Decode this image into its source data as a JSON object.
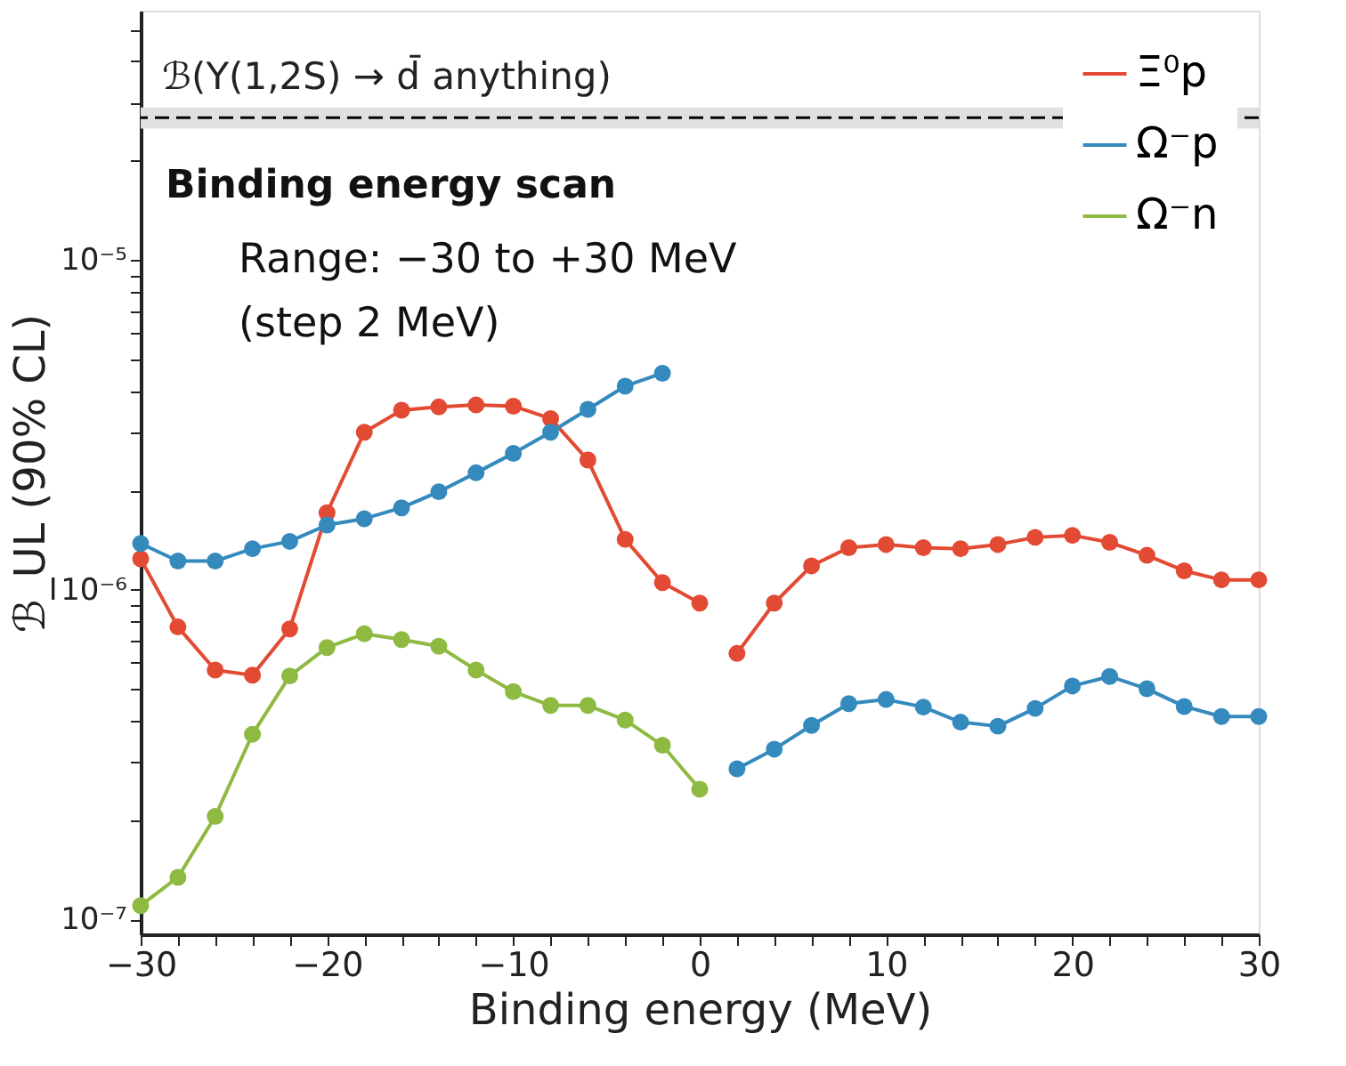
{
  "chart_data": {
    "type": "line",
    "xlabel": "Binding energy (MeV)",
    "ylabel": "ℬ_UL (90% CL)",
    "x": [
      -30,
      -28,
      -26,
      -24,
      -22,
      -20,
      -18,
      -16,
      -14,
      -12,
      -10,
      -8,
      -6,
      -4,
      -2,
      0,
      1,
      2,
      4,
      6,
      8,
      10,
      12,
      14,
      16,
      18,
      20,
      22,
      24,
      26,
      28,
      30
    ],
    "series": [
      {
        "name": "Ξ⁰p",
        "color": "#e24a33",
        "values": [
          1.24e-06,
          7.7e-07,
          5.7e-07,
          5.5e-07,
          7.6e-07,
          1.71e-06,
          3e-06,
          3.5e-06,
          3.58e-06,
          3.63e-06,
          3.6e-06,
          3.3e-06,
          2.47e-06,
          1.42e-06,
          1.05e-06,
          9.1e-07,
          null,
          6.4e-07,
          9.1e-07,
          1.18e-06,
          1.34e-06,
          1.37e-06,
          1.34e-06,
          1.33e-06,
          1.37e-06,
          1.44e-06,
          1.46e-06,
          1.39e-06,
          1.27e-06,
          1.14e-06,
          1.07e-06,
          1.07e-06
        ]
      },
      {
        "name": "Ω⁻p",
        "color": "#348abd",
        "values": [
          1.38e-06,
          1.22e-06,
          1.22e-06,
          1.33e-06,
          1.4e-06,
          1.57e-06,
          1.64e-06,
          1.77e-06,
          1.98e-06,
          2.26e-06,
          2.59e-06,
          3e-06,
          3.52e-06,
          4.14e-06,
          4.53e-06,
          null,
          null,
          2.86e-07,
          3.28e-07,
          3.87e-07,
          4.51e-07,
          4.64e-07,
          4.4e-07,
          3.96e-07,
          3.85e-07,
          4.36e-07,
          5.1e-07,
          5.45e-07,
          5e-07,
          4.42e-07,
          4.12e-07,
          4.12e-07
        ]
      },
      {
        "name": "Ω⁻n",
        "color": "#8eba42",
        "values": [
          1.1e-07,
          1.34e-07,
          2.05e-07,
          3.64e-07,
          5.47e-07,
          6.67e-07,
          7.34e-07,
          7.05e-07,
          6.73e-07,
          5.7e-07,
          4.9e-07,
          4.45e-07,
          4.45e-07,
          4.02e-07,
          3.37e-07,
          2.48e-07,
          null,
          null,
          null,
          null,
          null,
          null,
          null,
          null,
          null,
          null,
          null,
          null,
          null,
          null,
          null,
          null
        ]
      }
    ],
    "log": "y",
    "xlim": [
      -30,
      30
    ],
    "ylim": [
      9e-08,
      5.7e-05
    ],
    "xticks": [
      {
        "value": -30,
        "label": "−30"
      },
      {
        "value": -28,
        "label": null
      },
      {
        "value": -26,
        "label": null
      },
      {
        "value": -24,
        "label": null
      },
      {
        "value": -22,
        "label": null
      },
      {
        "value": -20,
        "label": "−20"
      },
      {
        "value": -18,
        "label": null
      },
      {
        "value": -16,
        "label": null
      },
      {
        "value": -14,
        "label": null
      },
      {
        "value": -12,
        "label": null
      },
      {
        "value": -10,
        "label": "−10"
      },
      {
        "value": -8,
        "label": null
      },
      {
        "value": -6,
        "label": null
      },
      {
        "value": -4,
        "label": null
      },
      {
        "value": -2,
        "label": null
      },
      0,
      {
        "value": 2,
        "label": null
      },
      {
        "value": 4,
        "label": null
      },
      {
        "value": 6,
        "label": null
      },
      {
        "value": 8,
        "label": null
      },
      10,
      {
        "value": 12,
        "label": null
      },
      {
        "value": 14,
        "label": null
      },
      {
        "value": 16,
        "label": null
      },
      {
        "value": 18,
        "label": null
      },
      20,
      {
        "value": 22,
        "label": null
      },
      {
        "value": 24,
        "label": null
      },
      {
        "value": 26,
        "label": null
      },
      {
        "value": 28,
        "label": null
      },
      30
    ],
    "yticks": [
      {
        "value": 1e-07,
        "label": "10⁻⁷"
      },
      {
        "value": 2e-07,
        "label": null
      },
      {
        "value": 3e-07,
        "label": null
      },
      {
        "value": 4e-07,
        "label": null
      },
      {
        "value": 5e-07,
        "label": null
      },
      {
        "value": 6e-07,
        "label": null
      },
      {
        "value": 7e-07,
        "label": null
      },
      {
        "value": 8e-07,
        "label": null
      },
      {
        "value": 9e-07,
        "label": null
      },
      {
        "value": 1e-06,
        "label": "10⁻⁶"
      },
      {
        "value": 2e-06,
        "label": null
      },
      {
        "value": 3e-06,
        "label": null
      },
      {
        "value": 4e-06,
        "label": null
      },
      {
        "value": 5e-06,
        "label": null
      },
      {
        "value": 6e-06,
        "label": null
      },
      {
        "value": 7e-06,
        "label": null
      },
      {
        "value": 8e-06,
        "label": null
      },
      {
        "value": 9e-06,
        "label": null
      },
      {
        "value": 1e-05,
        "label": "10⁻⁵"
      },
      {
        "value": 2e-05,
        "label": null
      },
      {
        "value": 3e-05,
        "label": null
      },
      {
        "value": 4e-05,
        "label": null
      },
      {
        "value": 5e-05,
        "label": null
      }
    ],
    "ref_lines": [
      {
        "axis": "y",
        "value": 2.7e-05,
        "label": "ℬ(Υ(1,2S) → d̄ anything)",
        "color": "#000000",
        "line_style": "dashed"
      }
    ],
    "bands": [
      {
        "axis": "y",
        "from": 2.5e-05,
        "to": 2.9e-05,
        "color": "#e0e0e0"
      }
    ],
    "annotations": [
      "Binding energy scan",
      "Range: −30 to +30 MeV",
      "(step 2 MeV)"
    ],
    "marker": "circle",
    "line_style": "solid",
    "grid": false,
    "legend": "top right"
  }
}
